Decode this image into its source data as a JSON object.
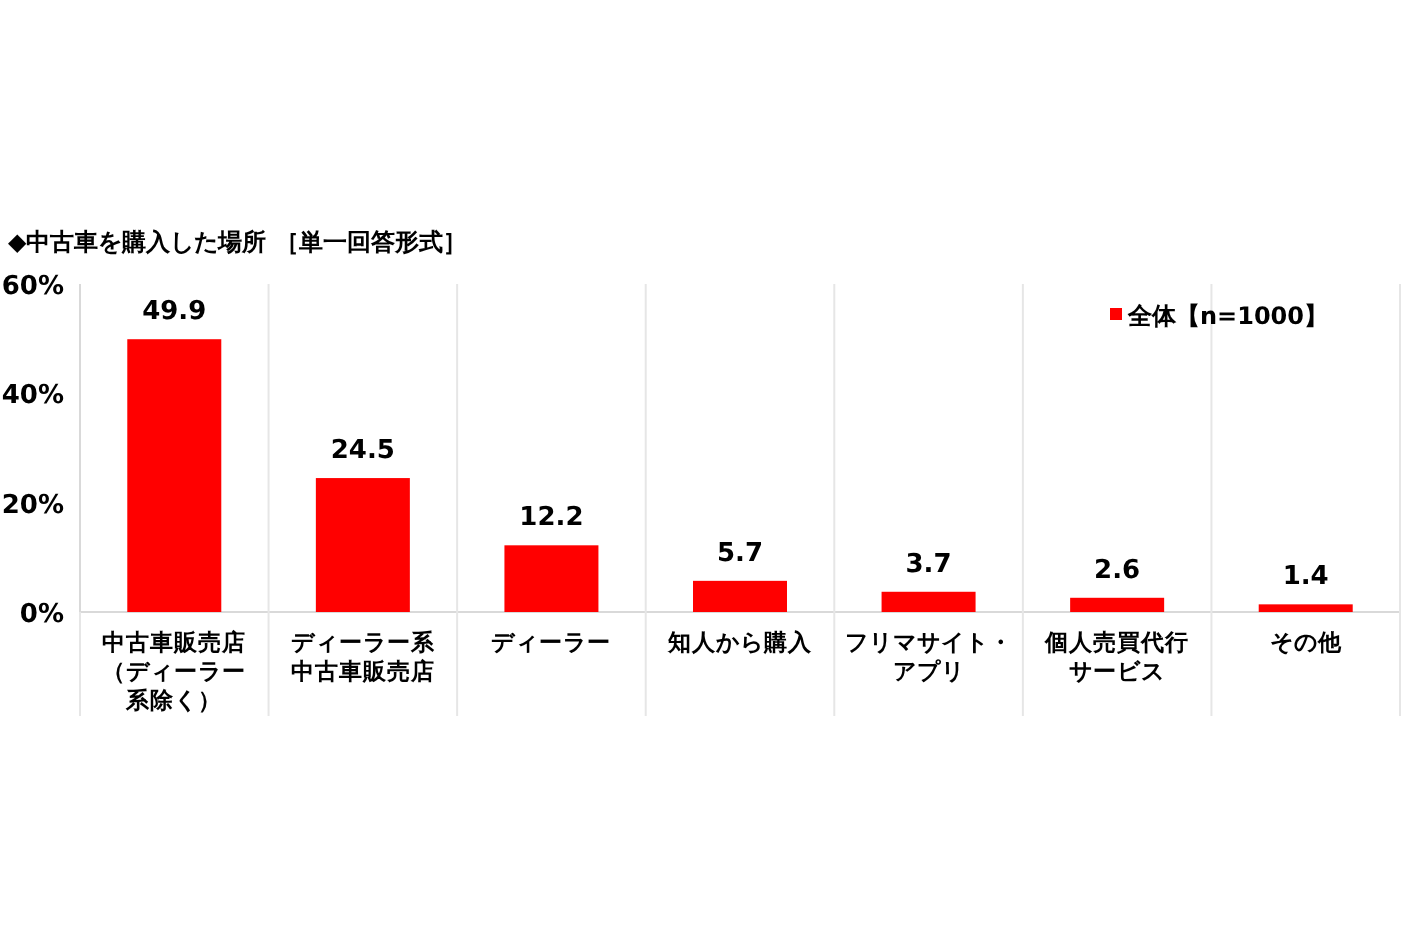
{
  "chart_data": {
    "type": "bar",
    "title": "◆中古車を購入した場所 ［単一回答形式］",
    "categories": [
      "中古車販売店（ディーラー系除く）",
      "ディーラー系中古車販売店",
      "ディーラー",
      "知人から購入",
      "フリマサイト・アプリ",
      "個人売買代行サービス",
      "その他"
    ],
    "series": [
      {
        "name": "全体【n=1000】",
        "color": "#ff0000",
        "values": [
          49.9,
          24.5,
          12.2,
          5.7,
          3.7,
          2.6,
          1.4
        ]
      }
    ],
    "ylim": [
      0,
      60
    ],
    "yticks": [
      {
        "value": 0,
        "label": "0%"
      },
      {
        "value": 20,
        "label": "20%"
      },
      {
        "value": 40,
        "label": "40%"
      },
      {
        "value": 60,
        "label": "60%"
      }
    ],
    "data_labels": true,
    "grid": false,
    "legend": "top right"
  }
}
